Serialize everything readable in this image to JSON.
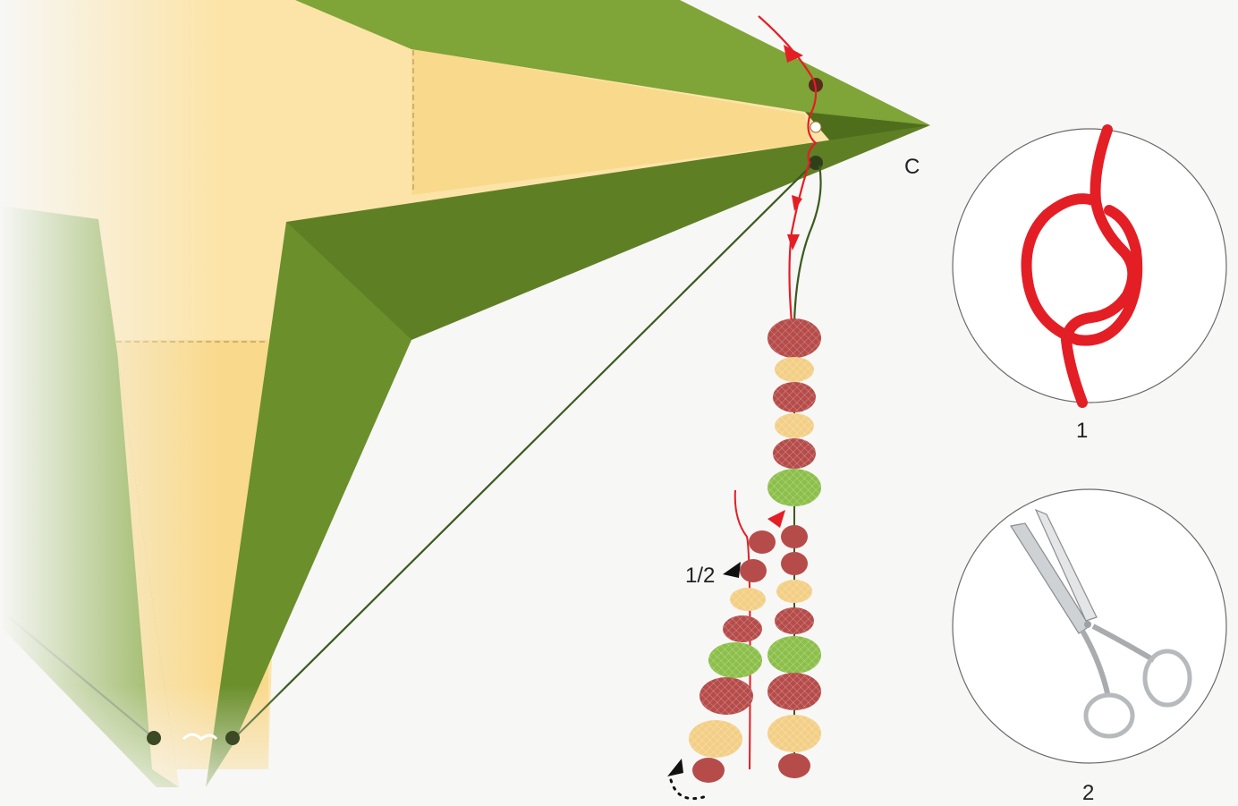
{
  "labels": {
    "corner": "C",
    "bead_count": "1/2",
    "step_knot": "1",
    "step_cut": "2"
  },
  "colors": {
    "background": "#f7f7f6",
    "paper_light": "#fce4a8",
    "paper_mid": "#f9d98c",
    "green_light": "#7fa437",
    "green_dark": "#5f7f25",
    "thread_red": "#e41e25",
    "thread_green": "#3b5a1d",
    "bead_red": "#b64c4a",
    "bead_cream": "#f3cf86",
    "bead_green": "#8cbf4a"
  },
  "icons": {
    "knot_circle": "overhand-knot-icon",
    "scissors_circle": "scissors-icon",
    "direction_arrow": "red-arrow-icon",
    "pointer": "black-pointer-icon"
  }
}
